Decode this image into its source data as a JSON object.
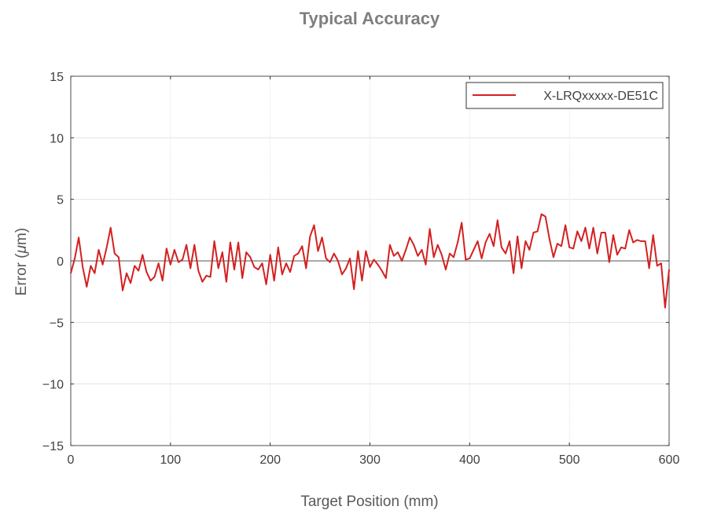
{
  "chart_data": {
    "type": "line",
    "title": "Typical Accuracy",
    "xlabel": "Target Position (mm)",
    "ylabel_prefix": "Error (",
    "ylabel_mu": "μ",
    "ylabel_suffix": "m)",
    "xlim": [
      0,
      600
    ],
    "ylim": [
      -15,
      15
    ],
    "xticks": [
      0,
      100,
      200,
      300,
      400,
      500,
      600
    ],
    "yticks": [
      15,
      10,
      5,
      0,
      -5,
      -10,
      -15
    ],
    "ytick_labels": [
      "15",
      "10",
      "5",
      "0",
      "−5",
      "−10",
      "−15"
    ],
    "grid": true,
    "legend_position": "top-right",
    "series": [
      {
        "name": "X-LRQxxxxx-DE51C",
        "color": "#d42020",
        "x": [
          0,
          4,
          8,
          12,
          16,
          20,
          24,
          28,
          32,
          36,
          40,
          44,
          48,
          52,
          56,
          60,
          64,
          68,
          72,
          76,
          80,
          84,
          88,
          92,
          96,
          100,
          104,
          108,
          112,
          116,
          120,
          124,
          128,
          132,
          136,
          140,
          144,
          148,
          152,
          156,
          160,
          164,
          168,
          172,
          176,
          180,
          184,
          188,
          192,
          196,
          200,
          204,
          208,
          212,
          216,
          220,
          224,
          228,
          232,
          236,
          240,
          244,
          248,
          252,
          256,
          260,
          264,
          268,
          272,
          276,
          280,
          284,
          288,
          292,
          296,
          300,
          304,
          308,
          312,
          316,
          320,
          324,
          328,
          332,
          336,
          340,
          344,
          348,
          352,
          356,
          360,
          364,
          368,
          372,
          376,
          380,
          384,
          388,
          392,
          396,
          400,
          404,
          408,
          412,
          416,
          420,
          424,
          428,
          432,
          436,
          440,
          444,
          448,
          452,
          456,
          460,
          464,
          468,
          472,
          476,
          480,
          484,
          488,
          492,
          496,
          500,
          504,
          508,
          512,
          516,
          520,
          524,
          528,
          532,
          536,
          540,
          544,
          548,
          552,
          556,
          560,
          564,
          568,
          572,
          576,
          580,
          584,
          588,
          592,
          596,
          600
        ],
        "values": [
          -1.0,
          0.2,
          1.9,
          -0.5,
          -2.1,
          -0.4,
          -1.0,
          0.9,
          -0.3,
          1.1,
          2.7,
          0.6,
          0.3,
          -2.4,
          -1.0,
          -1.8,
          -0.4,
          -0.8,
          0.5,
          -0.9,
          -1.6,
          -1.3,
          -0.2,
          -1.6,
          1.0,
          -0.3,
          0.9,
          -0.1,
          0.1,
          1.3,
          -0.6,
          1.3,
          -0.8,
          -1.7,
          -1.2,
          -1.3,
          1.6,
          -0.6,
          0.7,
          -1.7,
          1.5,
          -0.7,
          1.5,
          -1.4,
          0.7,
          0.3,
          -0.5,
          -0.7,
          -0.2,
          -1.9,
          0.5,
          -1.6,
          1.1,
          -1.1,
          -0.2,
          -0.9,
          0.4,
          0.6,
          1.2,
          -0.6,
          2.0,
          2.9,
          0.8,
          1.9,
          0.2,
          -0.1,
          0.6,
          0.0,
          -1.1,
          -0.6,
          0.2,
          -2.3,
          0.8,
          -1.6,
          0.8,
          -0.5,
          0.1,
          -0.3,
          -0.8,
          -1.4,
          1.3,
          0.4,
          0.7,
          0.0,
          0.9,
          1.9,
          1.3,
          0.4,
          0.9,
          -0.3,
          2.6,
          0.3,
          1.3,
          0.5,
          -0.7,
          0.6,
          0.3,
          1.5,
          3.1,
          0.1,
          0.2,
          0.9,
          1.6,
          0.2,
          1.5,
          2.2,
          1.2,
          3.3,
          1.1,
          0.6,
          1.6,
          -1.0,
          2.0,
          -0.6,
          1.6,
          0.9,
          2.3,
          2.4,
          3.8,
          3.6,
          1.8,
          0.3,
          1.4,
          1.2,
          2.9,
          1.1,
          1.0,
          2.4,
          1.6,
          2.7,
          1.0,
          2.7,
          0.6,
          2.3,
          2.3,
          -0.1,
          2.1,
          0.5,
          1.1,
          1.0,
          2.5,
          1.5,
          1.7,
          1.6,
          1.6,
          -0.6,
          2.1,
          -0.4,
          -0.2,
          -3.8,
          -0.7
        ]
      }
    ]
  }
}
